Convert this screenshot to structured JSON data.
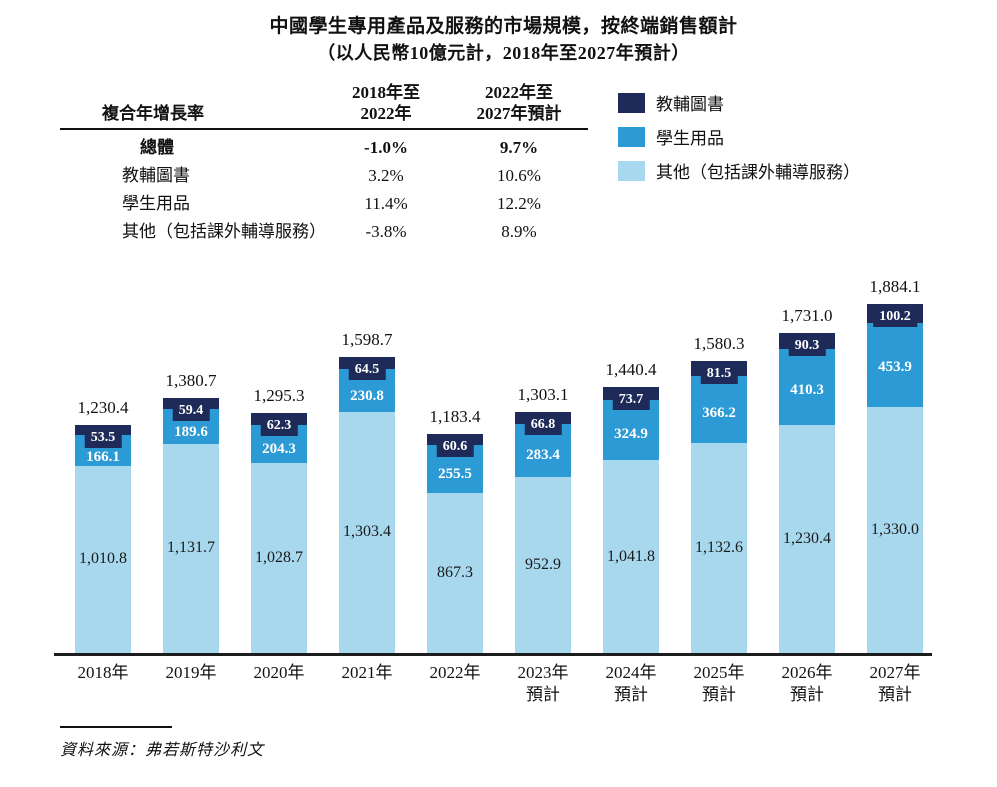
{
  "title": "中國學生專用產品及服務的市場規模，按終端銷售額計",
  "subtitle": "（以人民幣10億元計，2018年至2027年預計）",
  "cagr_table": {
    "header": {
      "label": "複合年增長率",
      "col1": "2018年至\n2022年",
      "col2": "2022年至\n2027年預計"
    },
    "rows": [
      {
        "label": "總體",
        "col1": "-1.0%",
        "col2": "9.7%",
        "bold": true
      },
      {
        "label": "教輔圖書",
        "col1": "3.2%",
        "col2": "10.6%",
        "bold": false
      },
      {
        "label": "學生用品",
        "col1": "11.4%",
        "col2": "12.2%",
        "bold": false
      },
      {
        "label": "其他（包括課外輔導服務）",
        "col1": "-3.8%",
        "col2": "8.9%",
        "bold": false
      }
    ]
  },
  "legend": [
    {
      "label": "教輔圖書",
      "color": "#1e2b58"
    },
    {
      "label": "學生用品",
      "color": "#2b9ad5"
    },
    {
      "label": "其他（包括課外輔導服務）",
      "color": "#a8d8ee"
    }
  ],
  "chart_data": {
    "type": "bar",
    "stacked": true,
    "title": "中國學生專用產品及服務的市場規模，按終端銷售額計",
    "unit": "人民幣10億元",
    "categories": [
      {
        "year": "2018年",
        "note": ""
      },
      {
        "year": "2019年",
        "note": ""
      },
      {
        "year": "2020年",
        "note": ""
      },
      {
        "year": "2021年",
        "note": ""
      },
      {
        "year": "2022年",
        "note": ""
      },
      {
        "year": "2023年",
        "note": "預計"
      },
      {
        "year": "2024年",
        "note": "預計"
      },
      {
        "year": "2025年",
        "note": "預計"
      },
      {
        "year": "2026年",
        "note": "預計"
      },
      {
        "year": "2027年",
        "note": "預計"
      }
    ],
    "series": [
      {
        "name": "教輔圖書",
        "color": "#1e2b58",
        "values": [
          53.5,
          59.4,
          62.3,
          64.5,
          60.6,
          66.8,
          73.7,
          81.5,
          90.3,
          100.2
        ]
      },
      {
        "name": "學生用品",
        "color": "#2b9ad5",
        "values": [
          166.1,
          189.6,
          204.3,
          230.8,
          255.5,
          283.4,
          324.9,
          366.2,
          410.3,
          453.9
        ]
      },
      {
        "name": "其他（包括課外輔導服務）",
        "color": "#a8d8ee",
        "values": [
          1010.8,
          1131.7,
          1028.7,
          1303.4,
          867.3,
          952.9,
          1041.8,
          1132.6,
          1230.4,
          1330.0
        ]
      }
    ],
    "totals": [
      1230.4,
      1380.7,
      1295.3,
      1598.7,
      1183.4,
      1303.1,
      1440.4,
      1580.3,
      1731.0,
      1884.1
    ],
    "legend_position": "top-right",
    "grid": false,
    "ylim": [
      0,
      1900
    ]
  },
  "source": "資料來源：弗若斯特沙利文"
}
